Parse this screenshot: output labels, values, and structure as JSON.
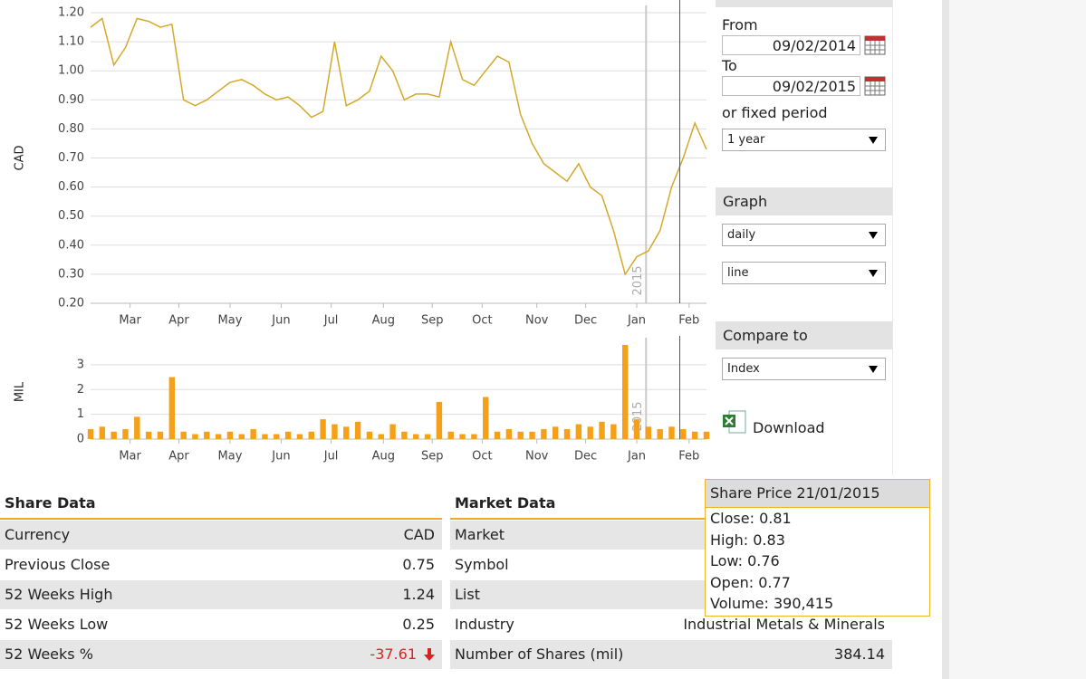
{
  "chart_data": [
    {
      "type": "line",
      "y_label": "CAD",
      "color": "#d4a92a",
      "values": [
        1.15,
        1.18,
        1.02,
        1.08,
        1.18,
        1.17,
        1.15,
        1.16,
        0.9,
        0.88,
        0.9,
        0.93,
        0.96,
        0.97,
        0.95,
        0.92,
        0.9,
        0.91,
        0.88,
        0.84,
        0.86,
        1.1,
        0.88,
        0.9,
        0.93,
        1.05,
        1.0,
        0.9,
        0.92,
        0.92,
        0.91,
        1.1,
        0.97,
        0.95,
        1.0,
        1.05,
        1.03,
        0.85,
        0.75,
        0.68,
        0.65,
        0.62,
        0.68,
        0.6,
        0.57,
        0.45,
        0.3,
        0.36,
        0.38,
        0.45,
        0.6,
        0.7,
        0.82,
        0.73
      ],
      "xlim": [
        0,
        53
      ],
      "xticks": [
        {
          "value": 3.4,
          "label": "Mar"
        },
        {
          "value": 7.6,
          "label": "Apr"
        },
        {
          "value": 12,
          "label": "May"
        },
        {
          "value": 16.4,
          "label": "Jun"
        },
        {
          "value": 20.7,
          "label": "Jul"
        },
        {
          "value": 25.2,
          "label": "Aug"
        },
        {
          "value": 29.4,
          "label": "Sep"
        },
        {
          "value": 33.7,
          "label": "Oct"
        },
        {
          "value": 38.4,
          "label": "Nov"
        },
        {
          "value": 42.6,
          "label": "Dec"
        },
        {
          "value": 47,
          "label": "Jan"
        },
        {
          "value": 51.5,
          "label": "Feb"
        }
      ],
      "ylim": [
        0.2,
        1.2
      ],
      "yticks": [
        {
          "value": 0.2,
          "label": "0.20"
        },
        {
          "value": 0.3,
          "label": "0.30"
        },
        {
          "value": 0.4,
          "label": "0.40"
        },
        {
          "value": 0.5,
          "label": "0.50"
        },
        {
          "value": 0.6,
          "label": "0.60"
        },
        {
          "value": 0.7,
          "label": "0.70"
        },
        {
          "value": 0.8,
          "label": "0.80"
        },
        {
          "value": 0.9,
          "label": "0.90"
        },
        {
          "value": 1.0,
          "label": "1.00"
        },
        {
          "value": 1.1,
          "label": "1.10"
        },
        {
          "value": 1.2,
          "label": "1.20"
        }
      ],
      "grid": true,
      "annotations": [
        {
          "x": 47.8,
          "label": "2015"
        }
      ],
      "cursor_x": 50.7
    },
    {
      "type": "bar",
      "y_label": "MIL",
      "color": "#f5a01a",
      "values": [
        0.4,
        0.5,
        0.3,
        0.4,
        0.9,
        0.3,
        0.3,
        2.5,
        0.3,
        0.2,
        0.3,
        0.2,
        0.3,
        0.2,
        0.4,
        0.2,
        0.2,
        0.3,
        0.2,
        0.3,
        0.8,
        0.6,
        0.5,
        0.7,
        0.3,
        0.2,
        0.6,
        0.3,
        0.2,
        0.2,
        1.5,
        0.3,
        0.2,
        0.2,
        1.7,
        0.3,
        0.4,
        0.3,
        0.3,
        0.4,
        0.5,
        0.4,
        0.6,
        0.5,
        0.7,
        0.6,
        3.8,
        0.8,
        0.5,
        0.4,
        0.5,
        0.4,
        0.3,
        0.3
      ],
      "xlim": [
        0,
        53
      ],
      "xticks": [
        {
          "value": 3.4,
          "label": "Mar"
        },
        {
          "value": 7.6,
          "label": "Apr"
        },
        {
          "value": 12,
          "label": "May"
        },
        {
          "value": 16.4,
          "label": "Jun"
        },
        {
          "value": 20.7,
          "label": "Jul"
        },
        {
          "value": 25.2,
          "label": "Aug"
        },
        {
          "value": 29.4,
          "label": "Sep"
        },
        {
          "value": 33.7,
          "label": "Oct"
        },
        {
          "value": 38.4,
          "label": "Nov"
        },
        {
          "value": 42.6,
          "label": "Dec"
        },
        {
          "value": 47,
          "label": "Jan"
        },
        {
          "value": 51.5,
          "label": "Feb"
        }
      ],
      "ylim": [
        0,
        3.8
      ],
      "yticks": [
        0,
        1,
        2,
        3
      ],
      "grid": true,
      "annotations": [
        {
          "x": 47.8,
          "label": "2015"
        }
      ],
      "cursor_x": 50.7
    }
  ],
  "sidebar": {
    "from_label": "From",
    "from": "09/02/2014",
    "to_label": "To",
    "to": "09/02/2015",
    "fixed_label": "or fixed period",
    "period": "1 year",
    "graph_label": "Graph",
    "graph_interval": "daily",
    "graph_style": "line",
    "compare_label": "Compare to",
    "compare": "Index",
    "download": "Download"
  },
  "share_data": {
    "title": "Share Data",
    "rows": [
      [
        "Currency",
        "CAD"
      ],
      [
        "Previous Close",
        "0.75"
      ],
      [
        "52 Weeks High",
        "1.24"
      ],
      [
        "52 Weeks Low",
        "0.25"
      ],
      [
        "52 Weeks %",
        "-37.61"
      ]
    ]
  },
  "market_data": {
    "title": "Market Data",
    "rows": [
      [
        "Market"
      ],
      [
        "Symbol"
      ],
      [
        "List"
      ],
      [
        "Industry",
        "Industrial Metals & Minerals"
      ],
      [
        "Number of Shares (mil)",
        "384.14"
      ]
    ]
  },
  "tooltip": {
    "title": "Share Price 21/01/2015",
    "lines": [
      "Close: 0.81",
      "High: 0.83",
      "Low: 0.76",
      "Open: 0.77",
      "Volume: 390,415"
    ]
  }
}
